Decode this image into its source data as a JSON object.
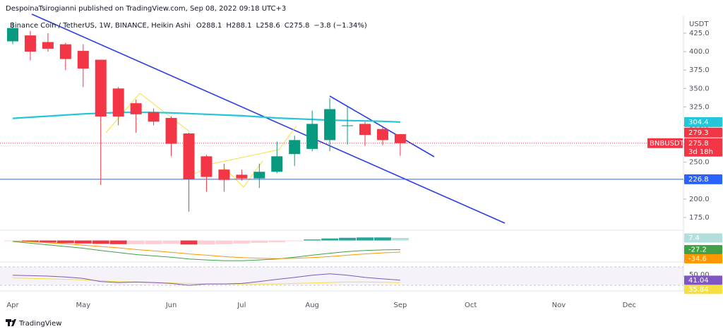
{
  "header": "DespoinaTsirogianni published on TradingView.com, Sep 08, 2022 09:18 UTC+3",
  "footer": "TradingView",
  "chart_data": {
    "type": "candlestick",
    "title": "Binance Coin / TetherUS, 1W, BINANCE, Heikin Ashi",
    "legend_values": [
      "O288.1",
      "H288.1",
      "L258.6",
      "C275.8",
      "−3.8 (−1.34%)"
    ],
    "currency": "USDT",
    "symbol": "BNBUSDT",
    "countdown": "3d 18h",
    "up_color": "#089981",
    "down_color": "#f23645",
    "categories": [
      "Apr",
      null,
      null,
      null,
      "May",
      null,
      null,
      null,
      null,
      "Jun",
      null,
      null,
      null,
      "Jul",
      null,
      null,
      null,
      "Aug",
      null,
      null,
      null,
      null,
      "Sep",
      null,
      null,
      null,
      "Oct",
      null,
      null,
      null,
      null,
      "Nov",
      null,
      null,
      null,
      "Dec"
    ],
    "open": [
      414,
      422,
      413,
      410,
      401,
      389,
      350,
      330,
      318,
      310,
      289,
      258,
      240,
      233,
      228,
      237,
      261,
      268,
      280,
      299,
      302,
      295,
      288.1,
      null,
      null,
      null,
      null,
      null,
      null,
      null,
      null,
      null,
      null,
      null,
      null,
      null
    ],
    "high": [
      440,
      428,
      425,
      412,
      410,
      389,
      352,
      335,
      323,
      312,
      290,
      260,
      248,
      240,
      248,
      278,
      286,
      320,
      337,
      325,
      305,
      297,
      288.1,
      null,
      null,
      null,
      null,
      null,
      null,
      null,
      null,
      null,
      null,
      null,
      null,
      null
    ],
    "low": [
      410,
      388,
      400,
      375,
      352,
      219,
      300,
      290,
      300,
      258,
      183,
      210,
      210,
      225,
      215,
      235,
      245,
      265,
      265,
      274,
      272,
      273,
      258.6,
      null,
      null,
      null,
      null,
      null,
      null,
      null,
      null,
      null,
      null,
      null,
      null,
      null
    ],
    "close": [
      432,
      400,
      404,
      390,
      377,
      312,
      312,
      315,
      305,
      275,
      227,
      230,
      226,
      228,
      237,
      258,
      280,
      302,
      322,
      300,
      287,
      280,
      275.8,
      null,
      null,
      null,
      null,
      null,
      null,
      null,
      null,
      null,
      null,
      null,
      null,
      null
    ],
    "last_price": 279.3,
    "ylim": [
      158.7,
      441.3
    ],
    "yticks": [
      {
        "value": 425,
        "label": "425.0"
      },
      {
        "value": 400,
        "label": "400.0"
      },
      {
        "value": 375,
        "label": "375.0"
      },
      {
        "value": 350,
        "label": "350.0"
      },
      {
        "value": 325,
        "label": "325.0"
      },
      {
        "value": 300,
        "label": "300.0"
      },
      {
        "value": 275,
        "label": "275.0"
      },
      {
        "value": 250,
        "label": "250.0"
      },
      {
        "value": 225,
        "label": "225.0"
      },
      {
        "value": 200,
        "label": "200.0"
      },
      {
        "value": 175,
        "label": "175.0"
      }
    ],
    "grid": false,
    "ma": {
      "color": "#26c6da",
      "values": [
        309.5,
        311,
        312.5,
        314,
        315.5,
        316.5,
        317.5,
        317.5,
        317.5,
        317,
        316,
        315,
        314,
        313,
        311.5,
        310,
        309,
        308,
        307,
        306.5,
        306,
        305.5,
        304.4,
        null,
        null,
        null,
        null,
        null,
        null,
        null,
        null,
        null,
        null,
        null,
        null,
        null
      ]
    },
    "hline": {
      "value": 226.8,
      "color": "#2962ff"
    },
    "macd": {
      "ylim": [
        -62,
        18
      ],
      "hist_colors": [
        "#26a69a",
        "#b2dfdb",
        "#ffcdd2",
        "#f23645"
      ],
      "histogram": [
        -2,
        -4,
        -6,
        -8,
        -9,
        -10,
        -11,
        -11,
        -11,
        -10,
        -12,
        -12,
        -11,
        -9,
        -7,
        -5,
        -2,
        3,
        6,
        8,
        9,
        9,
        7.4,
        null,
        null,
        null,
        null,
        null,
        null,
        null,
        null,
        null,
        null,
        null,
        null,
        null
      ],
      "macd_color": "#43a047",
      "macd": [
        -3,
        -8,
        -13,
        -18,
        -23,
        -30,
        -36,
        -42,
        -46,
        -50,
        -55,
        -58,
        -60,
        -60,
        -58,
        -55,
        -50,
        -44,
        -38,
        -33,
        -30,
        -28,
        -27.2,
        null,
        null,
        null,
        null,
        null,
        null,
        null,
        null,
        null,
        null,
        null,
        null,
        null
      ],
      "signal_color": "#ff9800",
      "signal": [
        -2,
        -4,
        -7,
        -10,
        -14,
        -18,
        -22,
        -27,
        -31,
        -35,
        -40,
        -44,
        -48,
        -51,
        -53,
        -54,
        -53,
        -51,
        -48,
        -44,
        -40,
        -37,
        -34.6,
        null,
        null,
        null,
        null,
        null,
        null,
        null,
        null,
        null,
        null,
        null,
        null,
        null
      ]
    },
    "rsi": {
      "ylim": [
        20,
        80
      ],
      "ticks": [
        {
          "value": 50,
          "label": "50.00"
        }
      ],
      "rsi_color": "#7e57c2",
      "rsi": [
        52,
        51,
        50,
        48,
        45,
        38,
        36,
        37,
        36,
        34,
        30,
        33,
        33,
        34,
        38,
        43,
        47,
        52,
        55,
        52,
        47,
        44,
        41.04,
        null,
        null,
        null,
        null,
        null,
        null,
        null,
        null,
        null,
        null,
        null,
        null,
        null
      ],
      "ma_color": "#f5e042",
      "ma": [
        46,
        45,
        44,
        43,
        42,
        40,
        38,
        37,
        36,
        35,
        34,
        33,
        33,
        33,
        33,
        33,
        34,
        35,
        36,
        37,
        37,
        36.5,
        35.84,
        null,
        null,
        null,
        null,
        null,
        null,
        null,
        null,
        null,
        null,
        null,
        null,
        null
      ]
    }
  }
}
